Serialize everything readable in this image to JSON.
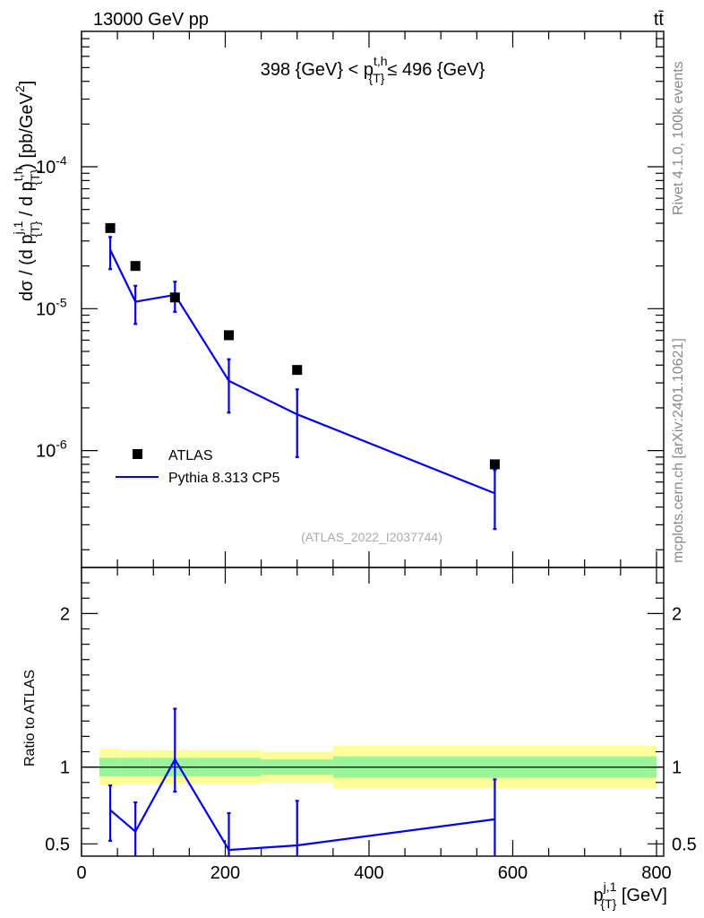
{
  "header": {
    "left": "13000 GeV pp",
    "right": "tt̄"
  },
  "side_text": {
    "rivet": "Rivet 4.1.0,  100k events",
    "mcplots": "mcplots.cern.ch [arXiv:2401.10621]"
  },
  "chart_data": [
    {
      "type": "scatter",
      "panel": "main",
      "title": "398 {GeV} < p_{T}^{t,h} ≤ 496 {GeV}",
      "watermark": "(ATLAS_2022_I2037744)",
      "ylabel": "dσ / (d p_{T}^{j,1} / d p_{T}^{t,h}) [pb/GeV²]",
      "yscale": "log",
      "ylim": [
        1.5e-07,
        0.0009
      ],
      "xlim": [
        0,
        810
      ],
      "y_tick_labels": [
        "10^{-6}",
        "10^{-5}",
        "10^{-4}"
      ],
      "x": [
        40,
        75,
        130,
        205,
        300,
        575
      ],
      "series": [
        {
          "name": "ATLAS",
          "style": "markers",
          "color": "#000000",
          "values": [
            3.7e-05,
            2e-05,
            1.2e-05,
            6.5e-06,
            3.7e-06,
            8e-07
          ]
        },
        {
          "name": "Pythia 8.313 CP5",
          "style": "line",
          "color": "#0000ee",
          "values": [
            2.6e-05,
            1.12e-05,
            1.25e-05,
            3.1e-06,
            1.8e-06,
            5e-07
          ],
          "err_low": [
            1.9e-05,
            7.8e-06,
            9.5e-06,
            1.85e-06,
            9e-07,
            2.8e-07
          ],
          "err_high": [
            3.2e-05,
            1.45e-05,
            1.55e-05,
            4.4e-06,
            2.7e-06,
            7.3e-07
          ]
        }
      ],
      "legend": {
        "position": "bottom-left",
        "entries": [
          "ATLAS",
          "Pythia 8.313 CP5"
        ]
      }
    },
    {
      "type": "line",
      "panel": "ratio",
      "ylabel": "Ratio to ATLAS",
      "xlabel": "p_{T}^{j,1} [GeV]",
      "xlim": [
        0,
        810
      ],
      "ylim": [
        0.42,
        2.3
      ],
      "x_ticks": [
        0,
        200,
        400,
        600,
        800
      ],
      "y_ticks": [
        0.5,
        1,
        2
      ],
      "bands": {
        "edges": [
          25,
          55,
          95,
          165,
          250,
          350,
          800
        ],
        "green_low": [
          0.94,
          0.94,
          0.94,
          0.94,
          0.95,
          0.93
        ],
        "green_high": [
          1.06,
          1.06,
          1.06,
          1.06,
          1.05,
          1.07
        ],
        "yellow_low": [
          0.88,
          0.89,
          0.89,
          0.89,
          0.9,
          0.86
        ],
        "yellow_high": [
          1.12,
          1.11,
          1.11,
          1.11,
          1.1,
          1.14
        ],
        "green_color": "#99f599",
        "yellow_color": "#ffff99"
      },
      "reference_line": 1,
      "series": [
        {
          "name": "Pythia 8.313 CP5",
          "color": "#0000ee",
          "x": [
            40,
            75,
            130,
            205,
            300,
            575
          ],
          "values": [
            0.72,
            0.58,
            1.05,
            0.46,
            0.49,
            0.66
          ],
          "err_low": [
            0.52,
            0.4,
            0.84,
            0.3,
            0.3,
            0.4
          ],
          "err_high": [
            0.88,
            0.77,
            1.38,
            0.7,
            0.78,
            0.92
          ]
        }
      ]
    }
  ]
}
